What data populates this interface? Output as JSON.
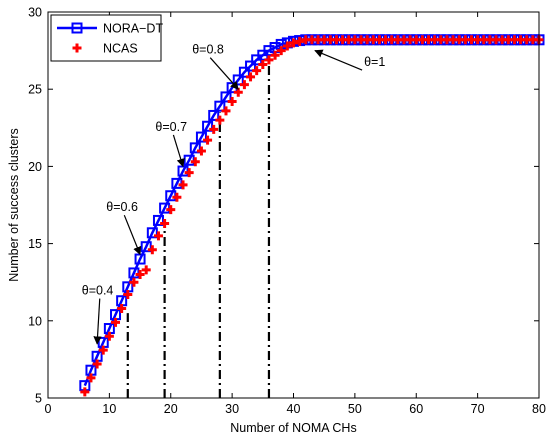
{
  "chart_data": {
    "type": "line",
    "xlabel": "Number of NOMA CHs",
    "ylabel": "Number of success clusters",
    "xlim": [
      0,
      80
    ],
    "ylim": [
      5,
      30
    ],
    "xticks": [
      0,
      10,
      20,
      30,
      40,
      50,
      60,
      70,
      80
    ],
    "yticks": [
      5,
      10,
      15,
      20,
      25,
      30
    ],
    "grid": false,
    "legend_position": "top-left",
    "series": [
      {
        "name": "NORA−DT",
        "color": "#0000ff",
        "marker": "square",
        "x": [
          6,
          7,
          8,
          9,
          10,
          11,
          12,
          13,
          14,
          15,
          16,
          17,
          18,
          19,
          20,
          21,
          22,
          23,
          24,
          25,
          26,
          27,
          28,
          29,
          30,
          31,
          32,
          33,
          34,
          35,
          36,
          37,
          38,
          39,
          40,
          41,
          42,
          43,
          44,
          45,
          46,
          47,
          48,
          49,
          50,
          51,
          52,
          53,
          54,
          55,
          56,
          57,
          58,
          59,
          60,
          61,
          62,
          63,
          64,
          65,
          66,
          67,
          68,
          69,
          70,
          71,
          72,
          73,
          74,
          75,
          76,
          77,
          78,
          79,
          80
        ],
        "y": [
          5.8,
          6.8,
          7.7,
          8.6,
          9.5,
          10.4,
          11.3,
          12.2,
          13.1,
          14.0,
          14.8,
          15.7,
          16.5,
          17.3,
          18.1,
          18.9,
          19.7,
          20.4,
          21.2,
          21.9,
          22.6,
          23.3,
          23.9,
          24.5,
          25.1,
          25.6,
          26.1,
          26.5,
          26.9,
          27.2,
          27.5,
          27.7,
          27.9,
          28.0,
          28.1,
          28.15,
          28.2,
          28.2,
          28.2,
          28.2,
          28.2,
          28.2,
          28.2,
          28.2,
          28.2,
          28.2,
          28.2,
          28.2,
          28.2,
          28.2,
          28.2,
          28.2,
          28.2,
          28.2,
          28.2,
          28.2,
          28.2,
          28.2,
          28.2,
          28.2,
          28.2,
          28.2,
          28.2,
          28.2,
          28.2,
          28.2,
          28.2,
          28.2,
          28.2,
          28.2,
          28.2,
          28.2,
          28.2,
          28.2,
          28.2
        ]
      },
      {
        "name": "NCAS",
        "color": "#ff0000",
        "marker": "plus",
        "x": [
          6,
          7,
          8,
          9,
          10,
          11,
          12,
          13,
          14,
          15,
          16,
          17,
          18,
          19,
          20,
          21,
          22,
          23,
          24,
          25,
          26,
          27,
          28,
          29,
          30,
          31,
          32,
          33,
          34,
          35,
          36,
          37,
          38,
          39,
          40,
          41,
          42,
          43,
          44,
          45,
          46,
          47,
          48,
          49,
          50,
          51,
          52,
          53,
          54,
          55,
          56,
          57,
          58,
          59,
          60,
          61,
          62,
          63,
          64,
          65,
          66,
          67,
          68,
          69,
          70,
          71,
          72,
          73,
          74,
          75,
          76,
          77,
          78,
          79,
          80
        ],
        "y": [
          5.4,
          6.3,
          7.2,
          8.1,
          9.0,
          9.9,
          10.8,
          11.7,
          12.5,
          13.0,
          13.3,
          14.6,
          15.5,
          16.3,
          17.2,
          18.0,
          18.8,
          19.6,
          20.3,
          21.0,
          21.7,
          22.4,
          23.0,
          23.6,
          24.2,
          24.8,
          25.3,
          25.8,
          26.2,
          26.6,
          26.9,
          27.2,
          27.5,
          27.8,
          28.0,
          28.1,
          28.2,
          28.2,
          28.2,
          28.2,
          28.2,
          28.2,
          28.2,
          28.2,
          28.2,
          28.2,
          28.2,
          28.2,
          28.2,
          28.2,
          28.2,
          28.2,
          28.2,
          28.2,
          28.2,
          28.2,
          28.2,
          28.2,
          28.2,
          28.2,
          28.2,
          28.2,
          28.2,
          28.2,
          28.2,
          28.2,
          28.2,
          28.2,
          28.2,
          28.2,
          28.2,
          28.2,
          28.2,
          28.2,
          28.2
        ]
      }
    ],
    "vlines": [
      {
        "x": 13,
        "y_top": 10.5
      },
      {
        "x": 19,
        "y_top": 16.5
      },
      {
        "x": 28,
        "y_top": 23.5
      },
      {
        "x": 36,
        "y_top": 26.8
      }
    ],
    "annotations": [
      {
        "text": "θ=0.4",
        "label_x": 5.5,
        "label_y": 11.7,
        "arrow_to_x": 8,
        "arrow_to_y": 8.5
      },
      {
        "text": "θ=0.6",
        "label_x": 9.5,
        "label_y": 17.1,
        "arrow_to_x": 15,
        "arrow_to_y": 14.3
      },
      {
        "text": "θ=0.7",
        "label_x": 17.5,
        "label_y": 22.3,
        "arrow_to_x": 22,
        "arrow_to_y": 20.0
      },
      {
        "text": "θ=0.8",
        "label_x": 23.5,
        "label_y": 27.3,
        "arrow_to_x": 31,
        "arrow_to_y": 25.0
      },
      {
        "text": "θ=1",
        "label_x": 51.5,
        "label_y": 26.5,
        "arrow_to_x": 43.5,
        "arrow_to_y": 27.5
      }
    ]
  }
}
